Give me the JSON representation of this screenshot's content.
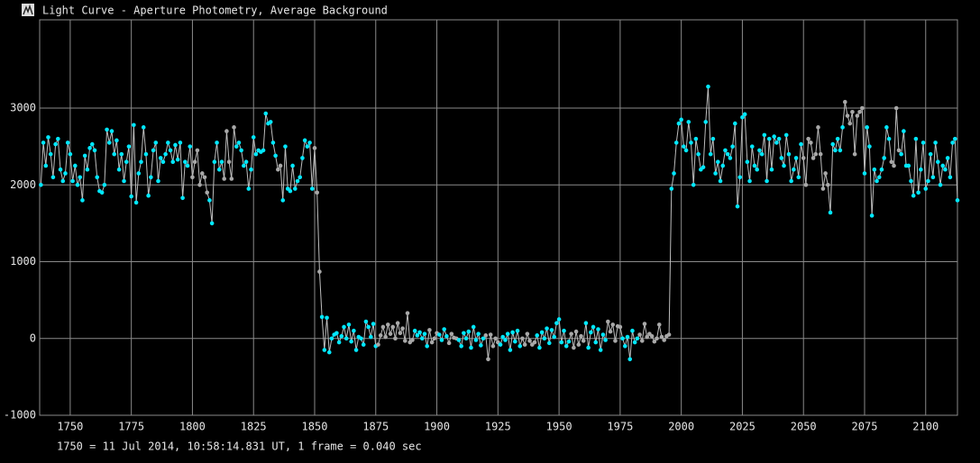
{
  "chart_data": {
    "type": "line",
    "title": "Light Curve - Aperture Photometry, Average Background",
    "note": "1750 = 11 Jul 2014, 10:58:14.831 UT, 1 frame = 0.040 sec",
    "color": "#00e8ff",
    "flag_color": "#a8a8a8",
    "line_color": "#bdbdbd",
    "grid": true,
    "xlim": [
      1737.5,
      2113
    ],
    "ylim": [
      -1000,
      4150
    ],
    "xticks": [
      1750,
      1775,
      1800,
      1825,
      1850,
      1875,
      1900,
      1925,
      1950,
      1975,
      2000,
      2025,
      2050,
      2075,
      2100
    ],
    "yticks": [
      -1000,
      0,
      1000,
      2000,
      3000
    ],
    "x": [
      1738,
      1739,
      1740,
      1741,
      1742,
      1743,
      1744,
      1745,
      1746,
      1747,
      1748,
      1749,
      1750,
      1751,
      1752,
      1753,
      1754,
      1755,
      1756,
      1757,
      1758,
      1759,
      1760,
      1761,
      1762,
      1763,
      1764,
      1765,
      1766,
      1767,
      1768,
      1769,
      1770,
      1771,
      1772,
      1773,
      1774,
      1775,
      1776,
      1777,
      1778,
      1779,
      1780,
      1781,
      1782,
      1783,
      1784,
      1785,
      1786,
      1787,
      1788,
      1789,
      1790,
      1791,
      1792,
      1793,
      1794,
      1795,
      1796,
      1797,
      1798,
      1799,
      1800,
      1801,
      1802,
      1803,
      1804,
      1805,
      1806,
      1807,
      1808,
      1809,
      1810,
      1811,
      1812,
      1813,
      1814,
      1815,
      1816,
      1817,
      1818,
      1819,
      1820,
      1821,
      1822,
      1823,
      1824,
      1825,
      1826,
      1827,
      1828,
      1829,
      1830,
      1831,
      1832,
      1833,
      1834,
      1835,
      1836,
      1837,
      1838,
      1839,
      1840,
      1841,
      1842,
      1843,
      1844,
      1845,
      1846,
      1847,
      1848,
      1849,
      1850,
      1851,
      1852,
      1853,
      1854,
      1855,
      1856,
      1857,
      1858,
      1859,
      1860,
      1861,
      1862,
      1863,
      1864,
      1865,
      1866,
      1867,
      1868,
      1869,
      1870,
      1871,
      1872,
      1873,
      1874,
      1875,
      1876,
      1877,
      1878,
      1879,
      1880,
      1881,
      1882,
      1883,
      1884,
      1885,
      1886,
      1887,
      1888,
      1889,
      1890,
      1891,
      1892,
      1893,
      1894,
      1895,
      1896,
      1897,
      1898,
      1899,
      1900,
      1901,
      1902,
      1903,
      1904,
      1905,
      1906,
      1907,
      1908,
      1909,
      1910,
      1911,
      1912,
      1913,
      1914,
      1915,
      1916,
      1917,
      1918,
      1919,
      1920,
      1921,
      1922,
      1923,
      1924,
      1925,
      1926,
      1927,
      1928,
      1929,
      1930,
      1931,
      1932,
      1933,
      1934,
      1935,
      1936,
      1937,
      1938,
      1939,
      1940,
      1941,
      1942,
      1943,
      1944,
      1945,
      1946,
      1947,
      1948,
      1949,
      1950,
      1951,
      1952,
      1953,
      1954,
      1955,
      1956,
      1957,
      1958,
      1959,
      1960,
      1961,
      1962,
      1963,
      1964,
      1965,
      1966,
      1967,
      1968,
      1969,
      1970,
      1971,
      1972,
      1973,
      1974,
      1975,
      1976,
      1977,
      1978,
      1979,
      1980,
      1981,
      1982,
      1983,
      1984,
      1985,
      1986,
      1987,
      1988,
      1989,
      1990,
      1991,
      1992,
      1993,
      1994,
      1995,
      1996,
      1997,
      1998,
      1999,
      2000,
      2001,
      2002,
      2003,
      2004,
      2005,
      2006,
      2007,
      2008,
      2009,
      2010,
      2011,
      2012,
      2013,
      2014,
      2015,
      2016,
      2017,
      2018,
      2019,
      2020,
      2021,
      2022,
      2023,
      2024,
      2025,
      2026,
      2027,
      2028,
      2029,
      2030,
      2031,
      2032,
      2033,
      2034,
      2035,
      2036,
      2037,
      2038,
      2039,
      2040,
      2041,
      2042,
      2043,
      2044,
      2045,
      2046,
      2047,
      2048,
      2049,
      2050,
      2051,
      2052,
      2053,
      2054,
      2055,
      2056,
      2057,
      2058,
      2059,
      2060,
      2061,
      2062,
      2063,
      2064,
      2065,
      2066,
      2067,
      2068,
      2069,
      2070,
      2071,
      2072,
      2073,
      2074,
      2075,
      2076,
      2077,
      2078,
      2079,
      2080,
      2081,
      2082,
      2083,
      2084,
      2085,
      2086,
      2087,
      2088,
      2089,
      2090,
      2091,
      2092,
      2093,
      2094,
      2095,
      2096,
      2097,
      2098,
      2099,
      2100,
      2101,
      2102,
      2103,
      2104,
      2105,
      2106,
      2107,
      2108,
      2109,
      2110,
      2111,
      2112,
      2113
    ],
    "values": [
      2000,
      2550,
      2250,
      2620,
      2400,
      2100,
      2530,
      2600,
      2200,
      2050,
      2150,
      2550,
      2400,
      2050,
      2250,
      2000,
      2100,
      1800,
      2380,
      2200,
      2480,
      2530,
      2450,
      2100,
      1920,
      1900,
      2000,
      2720,
      2550,
      2700,
      2400,
      2580,
      2200,
      2400,
      2050,
      2300,
      2500,
      1850,
      2780,
      1770,
      2150,
      2300,
      2750,
      2400,
      1860,
      2100,
      2450,
      2550,
      2050,
      2350,
      2300,
      2400,
      2550,
      2450,
      2300,
      2520,
      2330,
      2550,
      1830,
      2300,
      2250,
      2500,
      2100,
      2300,
      2450,
      2000,
      2150,
      2100,
      1900,
      1800,
      1500,
      2300,
      2550,
      2200,
      2300,
      2080,
      2700,
      2300,
      2080,
      2750,
      2500,
      2550,
      2450,
      2250,
      2300,
      1950,
      2200,
      2620,
      2400,
      2450,
      2430,
      2450,
      2930,
      2800,
      2820,
      2550,
      2380,
      2200,
      2250,
      1800,
      2500,
      1950,
      1920,
      2250,
      1950,
      2050,
      2100,
      2350,
      2580,
      2500,
      2550,
      1950,
      2480,
      1900,
      870,
      280,
      -150,
      270,
      -180,
      0,
      50,
      70,
      -50,
      30,
      150,
      0,
      180,
      -40,
      100,
      -150,
      20,
      0,
      -80,
      220,
      150,
      20,
      190,
      -100,
      -80,
      40,
      150,
      20,
      180,
      60,
      150,
      0,
      200,
      70,
      130,
      -30,
      330,
      -50,
      -20,
      100,
      40,
      80,
      0,
      60,
      -100,
      110,
      -50,
      0,
      70,
      50,
      -20,
      120,
      30,
      -60,
      60,
      10,
      0,
      -20,
      -100,
      70,
      0,
      90,
      -120,
      150,
      -20,
      60,
      -90,
      0,
      40,
      -270,
      50,
      -100,
      0,
      -50,
      -80,
      20,
      -20,
      60,
      -150,
      80,
      -40,
      100,
      -100,
      0,
      -80,
      60,
      -30,
      -80,
      -50,
      40,
      -120,
      80,
      0,
      130,
      -60,
      110,
      20,
      200,
      250,
      -50,
      100,
      -100,
      -40,
      60,
      -120,
      90,
      -80,
      30,
      -30,
      200,
      -120,
      80,
      150,
      -50,
      120,
      -150,
      50,
      -20,
      220,
      90,
      180,
      -30,
      160,
      150,
      0,
      -100,
      20,
      -270,
      100,
      -50,
      0,
      50,
      -30,
      190,
      20,
      60,
      30,
      -40,
      0,
      180,
      20,
      -20,
      30,
      50,
      1950,
      2150,
      2550,
      2800,
      2850,
      2500,
      2450,
      2820,
      2550,
      2000,
      2600,
      2400,
      2200,
      2230,
      2820,
      3280,
      2400,
      2600,
      2150,
      2300,
      2050,
      2250,
      2450,
      2400,
      2350,
      2500,
      2800,
      1720,
      2100,
      2880,
      2920,
      2300,
      2050,
      2500,
      2250,
      2200,
      2450,
      2400,
      2650,
      2050,
      2600,
      2200,
      2630,
      2550,
      2600,
      2350,
      2250,
      2650,
      2400,
      2050,
      2200,
      2350,
      2100,
      2530,
      2350,
      2000,
      2600,
      2550,
      2350,
      2400,
      2750,
      2400,
      1950,
      2150,
      2000,
      1640,
      2530,
      2450,
      2600,
      2450,
      2750,
      3080,
      2900,
      2800,
      2950,
      2400,
      2900,
      2950,
      3000,
      2150,
      2750,
      2500,
      1600,
      2200,
      2050,
      2100,
      2200,
      2350,
      2750,
      2600,
      2300,
      2250,
      3000,
      2450,
      2400,
      2700,
      2250,
      2250,
      2050,
      1860,
      2600,
      1900,
      2200,
      2550,
      1950,
      2050,
      2400,
      2100,
      2550,
      2300,
      2000,
      2250,
      2200,
      2350,
      2100,
      2550,
      2600,
      1800
    ],
    "flagged_x": [
      1800,
      1801,
      1802,
      1803,
      1804,
      1805,
      1806,
      1813,
      1814,
      1815,
      1816,
      1817,
      1835,
      1836,
      1850,
      1851,
      1852,
      1876,
      1877,
      1878,
      1879,
      1880,
      1881,
      1882,
      1883,
      1884,
      1885,
      1886,
      1887,
      1888,
      1889,
      1890,
      1897,
      1898,
      1899,
      1900,
      1905,
      1906,
      1907,
      1908,
      1920,
      1921,
      1922,
      1923,
      1924,
      1925,
      1935,
      1936,
      1937,
      1938,
      1939,
      1940,
      1955,
      1956,
      1957,
      1958,
      1959,
      1960,
      1970,
      1971,
      1972,
      1973,
      1974,
      1975,
      1983,
      1984,
      1985,
      1986,
      1987,
      1988,
      1989,
      1990,
      1991,
      1992,
      1993,
      1994,
      1995,
      2050,
      2051,
      2052,
      2053,
      2054,
      2055,
      2056,
      2057,
      2058,
      2059,
      2060,
      2067,
      2068,
      2069,
      2070,
      2071,
      2072,
      2073,
      2074,
      2086,
      2087,
      2088,
      2089
    ]
  }
}
